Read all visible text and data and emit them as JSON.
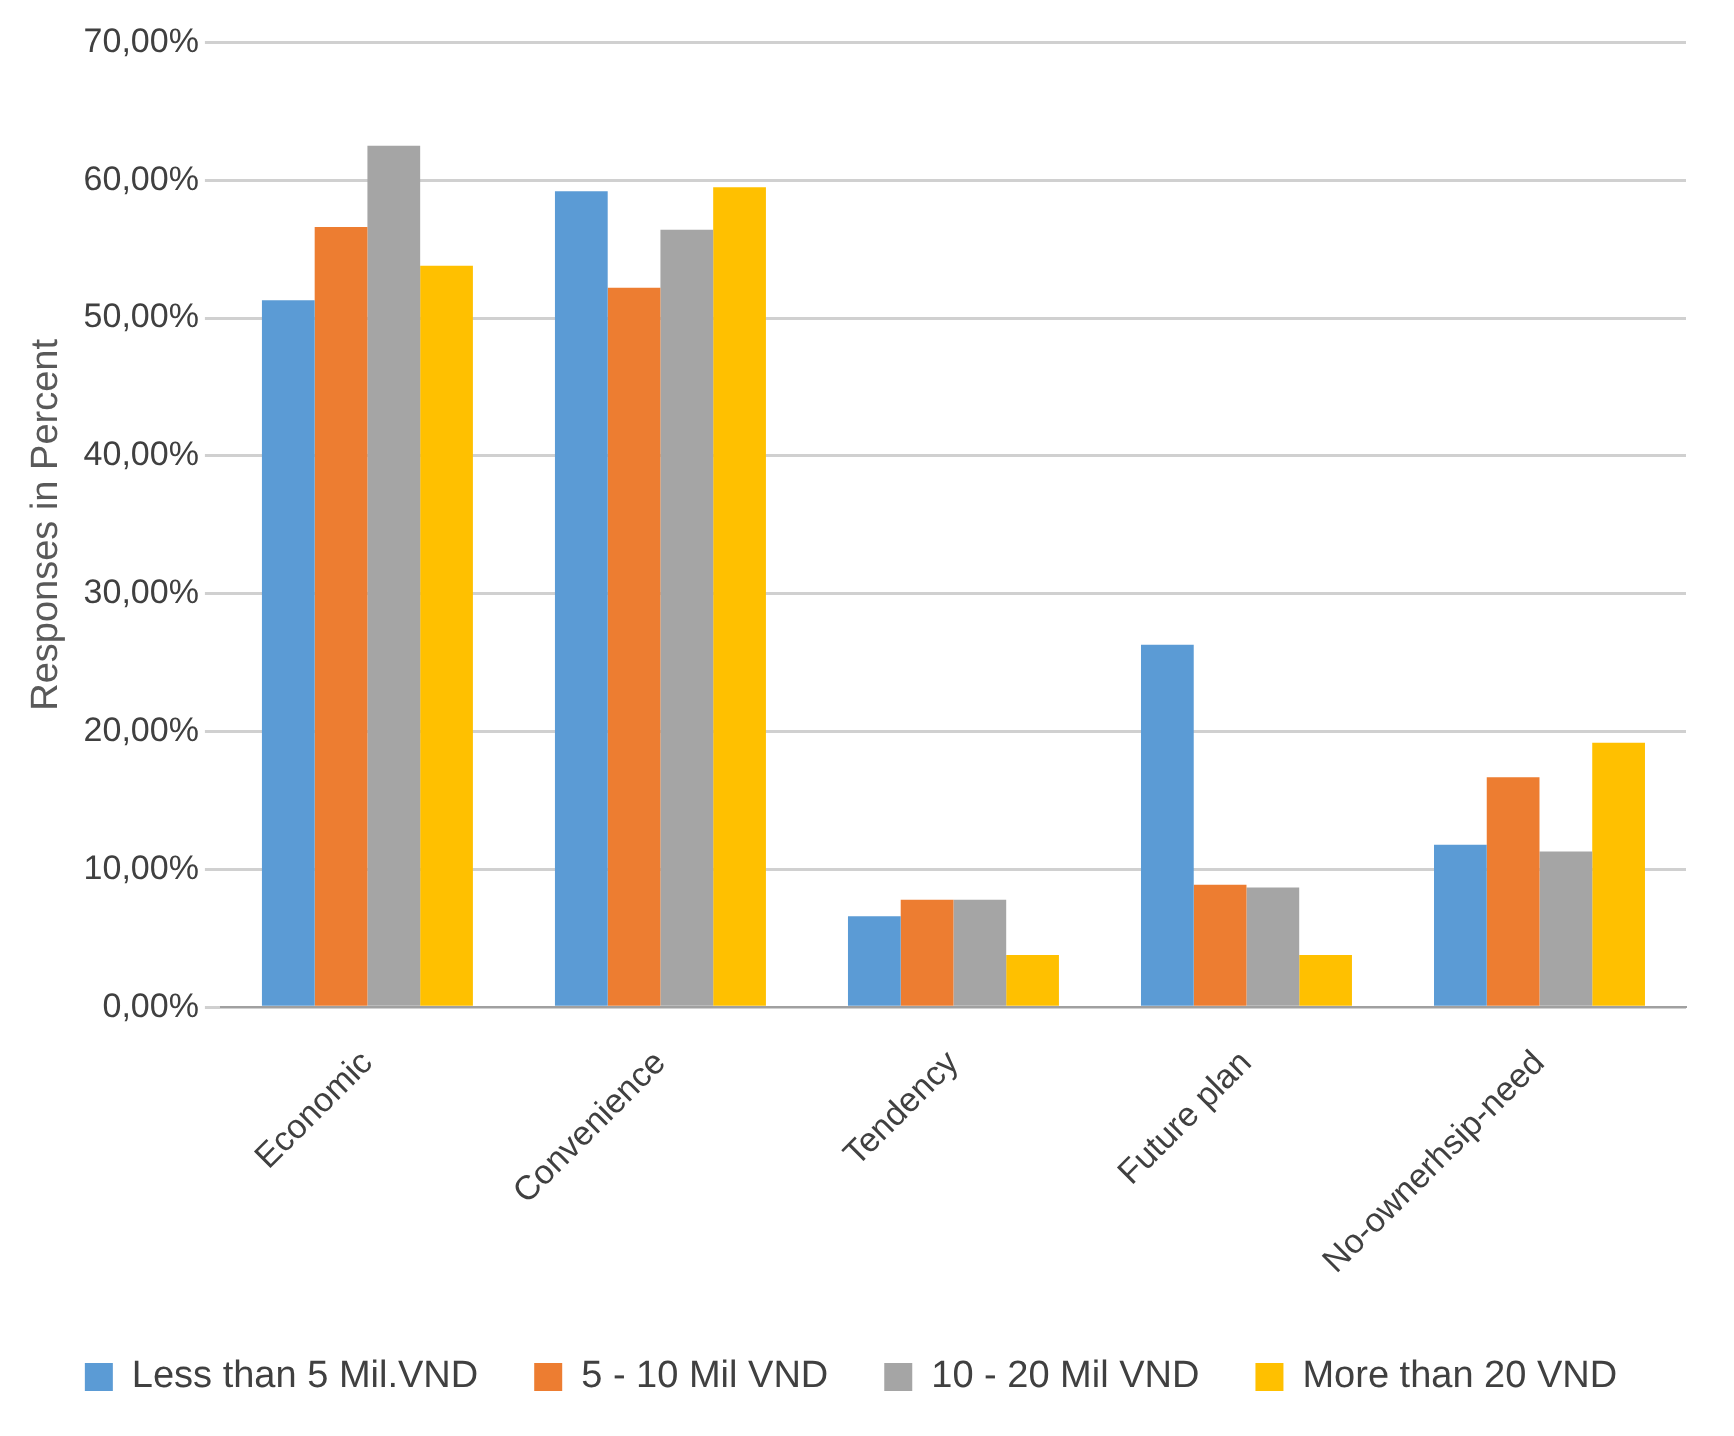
{
  "chart_data": {
    "type": "bar",
    "ylabel": "Responses in Percent",
    "categories": [
      "Economic",
      "Convenience",
      "Tendency",
      "Future plan",
      "No-ownerhsip-need"
    ],
    "series": [
      {
        "name": "Less than 5 Mil.VND",
        "color": "#5b9bd5",
        "values": [
          51.3,
          59.2,
          6.6,
          26.3,
          11.8
        ]
      },
      {
        "name": "5 - 10 Mil VND",
        "color": "#ed7d31",
        "values": [
          56.6,
          52.2,
          7.8,
          8.9,
          16.7
        ]
      },
      {
        "name": "10 - 20 Mil VND",
        "color": "#a5a5a5",
        "values": [
          62.5,
          56.4,
          7.8,
          8.7,
          11.3
        ]
      },
      {
        "name": "More than 20 VND",
        "color": "#ffc000",
        "values": [
          53.8,
          59.5,
          3.8,
          3.8,
          19.2
        ]
      }
    ],
    "ylim": [
      0,
      70
    ],
    "yticks": [
      {
        "value": 0,
        "label": "0,00%"
      },
      {
        "value": 10,
        "label": "10,00%"
      },
      {
        "value": 20,
        "label": "20,00%"
      },
      {
        "value": 30,
        "label": "30,00%"
      },
      {
        "value": 40,
        "label": "40,00%"
      },
      {
        "value": 50,
        "label": "50,00%"
      },
      {
        "value": 60,
        "label": "60,00%"
      },
      {
        "value": 70,
        "label": "70,00%"
      }
    ],
    "grid": "y",
    "legend": "bottom"
  }
}
